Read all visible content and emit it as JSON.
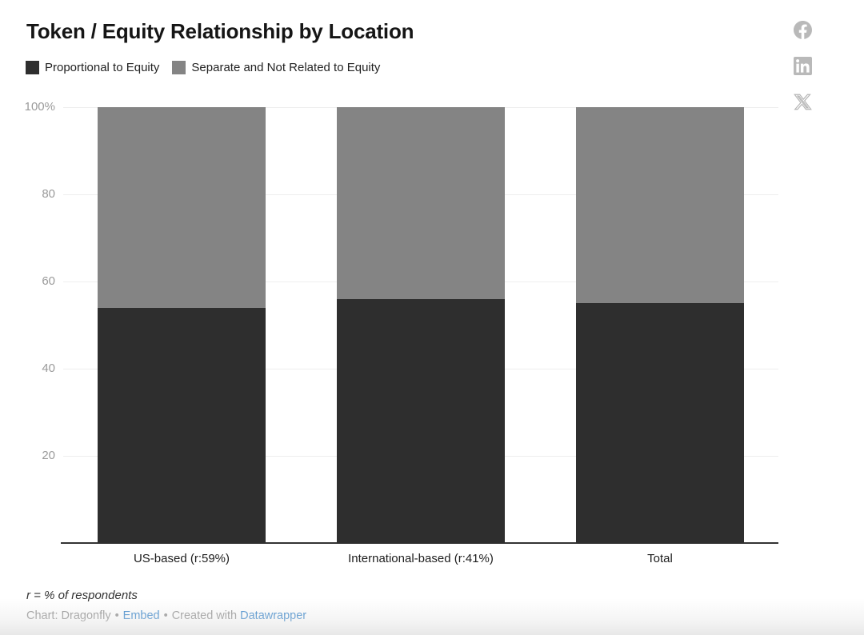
{
  "header": {
    "title": "Token / Equity Relationship by Location"
  },
  "legend": {
    "items": [
      {
        "label": "Proportional to Equity",
        "color": "#2e2e2e"
      },
      {
        "label": "Separate and Not Related to Equity",
        "color": "#848484"
      }
    ]
  },
  "social": {
    "buttons": [
      {
        "name": "facebook-share"
      },
      {
        "name": "linkedin-share"
      },
      {
        "name": "x-share"
      }
    ],
    "icon_color": "#b9b9b9"
  },
  "chart_data": {
    "type": "bar",
    "stacked": true,
    "title": "Token / Equity Relationship by Location",
    "categories": [
      "US-based (r:59%)",
      "International-based (r:41%)",
      "Total"
    ],
    "series": [
      {
        "name": "Proportional to Equity",
        "color": "#2e2e2e",
        "values": [
          54,
          56,
          55
        ]
      },
      {
        "name": "Separate and Not Related to Equity",
        "color": "#848484",
        "values": [
          46,
          44,
          45
        ]
      }
    ],
    "xlabel": "",
    "ylabel": "",
    "ylim": [
      0,
      100
    ],
    "yticks": [
      20,
      40,
      60,
      80,
      100
    ],
    "ytick_labels": [
      "20",
      "40",
      "60",
      "80",
      "100%"
    ],
    "grid": true,
    "gridline_color": "#eeeeee",
    "axis_color": "#333333",
    "legend_position": "top-left"
  },
  "footer": {
    "note": "r = % of respondents",
    "source": "Chart: Dragonfly",
    "bullet": "•",
    "embed_label": "Embed",
    "created_with": "Created with",
    "tool_label": "Datawrapper"
  }
}
